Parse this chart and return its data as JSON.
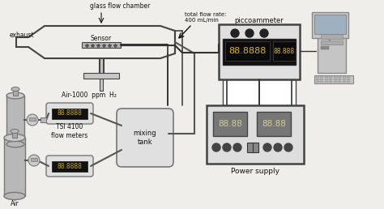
{
  "bg_color": "#f0eeea",
  "labels": {
    "glass_flow_chamber": "glass flow chamber",
    "exhaust": "exhaust",
    "sensor": "Sensor",
    "total_flow": "total flow rate:\n400 mL/min",
    "piccoammeter": "piccoammeter",
    "air_h2": "Air-1000  ppm  H₂",
    "tsi": "TSI 4100\nflow meters",
    "mixing_tank": "mixing\ntank",
    "power_supply": "Power supply",
    "air": "Air"
  },
  "colors": {
    "outline": "#444444",
    "gray_fill": "#b0b0b0",
    "light_gray": "#c8c8c8",
    "dark_gray": "#707070",
    "black": "#111111",
    "white": "#ffffff",
    "display_bg": "#1a1a1a",
    "display_amber": "#c8a000",
    "device_bg": "#d8d8d8",
    "device_dark": "#888888",
    "wire": "#333333"
  }
}
